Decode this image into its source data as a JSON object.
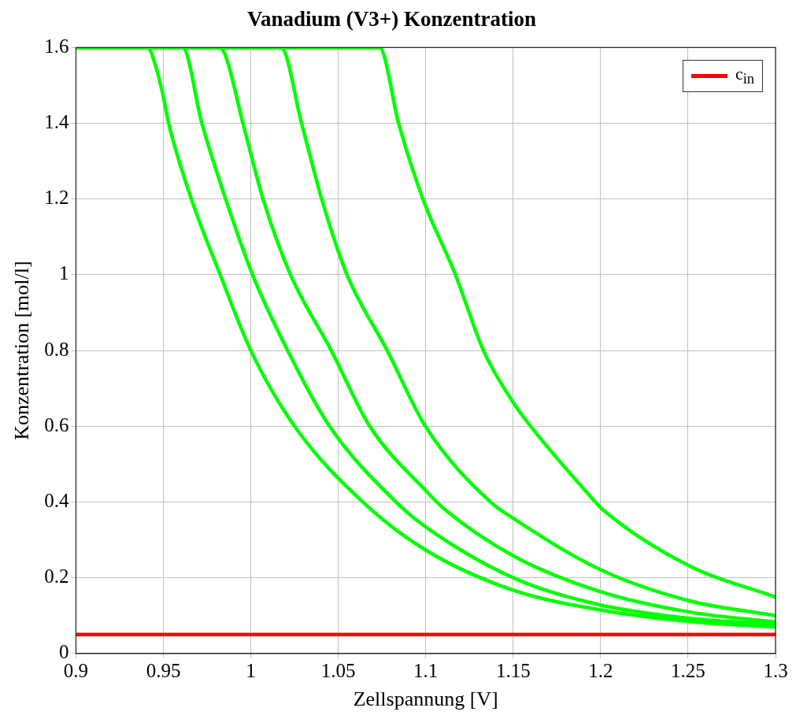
{
  "chart_data": {
    "type": "line",
    "title": "Vanadium (V3+) Konzentration",
    "xlabel": "Zellspannung [V]",
    "ylabel": "Konzentration [mol/l]",
    "xlim": [
      0.9,
      1.3
    ],
    "xticks": [
      0.9,
      0.95,
      1,
      1.05,
      1.1,
      1.15,
      1.2,
      1.25,
      1.3
    ],
    "ylim": [
      0,
      1.6
    ],
    "yticks": [
      0,
      0.2,
      0.4,
      0.6,
      0.8,
      1,
      1.2,
      1.4,
      1.6
    ],
    "grid": true,
    "legend": "top right",
    "marker": "none",
    "line_style": "solid",
    "series": [
      {
        "color": "#00ff00",
        "x": [
          0.9,
          0.941,
          0.945,
          0.95,
          0.953,
          0.966,
          0.9825,
          1.0,
          1.025,
          1.064,
          1.1,
          1.15,
          1.2,
          1.25,
          1.3
        ],
        "values": [
          1.6,
          1.6,
          1.56,
          1.47,
          1.4,
          1.2,
          1.0,
          0.8,
          0.6,
          0.4,
          0.273,
          0.167,
          0.115,
          0.085,
          0.07
        ]
      },
      {
        "color": "#00ff00",
        "x": [
          0.9,
          0.961,
          0.972,
          0.9856,
          1.001,
          1.021,
          1.045,
          1.083,
          1.1,
          1.15,
          1.2,
          1.25,
          1.3
        ],
        "values": [
          1.6,
          1.6,
          1.4,
          1.2,
          1.0,
          0.8,
          0.6,
          0.4,
          0.334,
          0.2,
          0.128,
          0.093,
          0.077
        ]
      },
      {
        "color": "#00ff00",
        "x": [
          0.9,
          0.981,
          0.985,
          0.9955,
          1.007,
          1.0227,
          1.046,
          1.068,
          1.1,
          1.111,
          1.15,
          1.2,
          1.25,
          1.3
        ],
        "values": [
          1.6,
          1.6,
          1.585,
          1.4,
          1.2,
          1.0,
          0.8,
          0.6,
          0.43,
          0.38,
          0.258,
          0.163,
          0.11,
          0.083
        ]
      },
      {
        "color": "#00ff00",
        "x": [
          0.9,
          1.0173,
          1.029,
          1.0405,
          1.055,
          1.078,
          1.0998,
          1.137,
          1.15,
          1.2,
          1.25,
          1.3
        ],
        "values": [
          1.6,
          1.6,
          1.4,
          1.2,
          1.0,
          0.8,
          0.6,
          0.4,
          0.357,
          0.221,
          0.14,
          0.1
        ]
      },
      {
        "color": "#00ff00",
        "x": [
          0.9,
          1.0736,
          1.0845,
          1.0984,
          1.117,
          1.133,
          1.15,
          1.16,
          1.197,
          1.2,
          1.25,
          1.3
        ],
        "values": [
          1.6,
          1.6,
          1.4,
          1.2,
          1.0,
          0.8,
          0.663,
          0.6,
          0.4,
          0.385,
          0.233,
          0.149
        ]
      },
      {
        "name": "c$_{in}$",
        "color": "#ff0000",
        "x": [
          0.9,
          1.3
        ],
        "values": [
          0.05,
          0.05
        ]
      }
    ]
  }
}
